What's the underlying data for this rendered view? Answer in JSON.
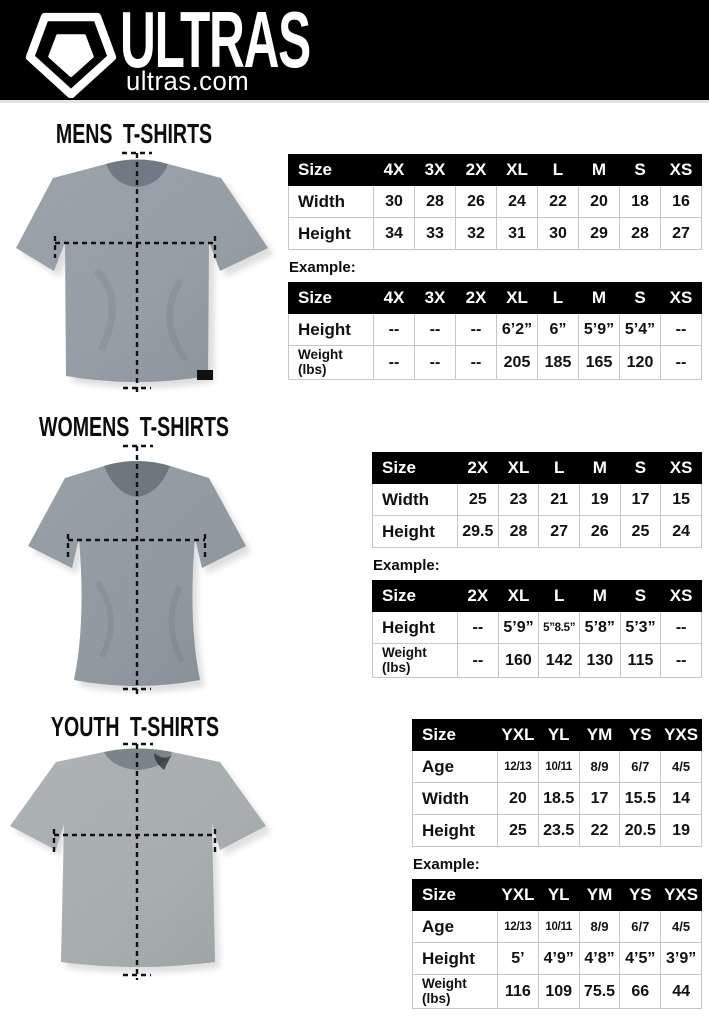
{
  "header": {
    "brand": "ULTRAS",
    "website": "ultras.com",
    "bg_color": "#000000",
    "logo_icon": "pentagon-crest-icon"
  },
  "example_label": "Example:",
  "colors": {
    "table_header_bg": "#000000",
    "table_header_text": "#ffffff",
    "table_border": "#c6c6c6",
    "shirt_gray_mens": "#87919a",
    "shirt_gray_womens": "#828c95",
    "shirt_gray_youth": "#99a0a2",
    "measure_line": "#111111"
  },
  "sections": [
    {
      "title": "MENS T-SHIRTS",
      "tables": [
        {
          "columns": [
            "Size",
            "4X",
            "3X",
            "2X",
            "XL",
            "L",
            "M",
            "S",
            "XS"
          ],
          "rows": [
            {
              "label": "Width",
              "values": [
                "30",
                "28",
                "26",
                "24",
                "22",
                "20",
                "18",
                "16"
              ]
            },
            {
              "label": "Height",
              "values": [
                "34",
                "33",
                "32",
                "31",
                "30",
                "29",
                "28",
                "27"
              ]
            }
          ]
        },
        {
          "columns": [
            "Size",
            "4X",
            "3X",
            "2X",
            "XL",
            "L",
            "M",
            "S",
            "XS"
          ],
          "rows": [
            {
              "label": "Height",
              "values": [
                "--",
                "--",
                "--",
                "6’2”",
                "6”",
                "5’9”",
                "5’4”",
                "--"
              ]
            },
            {
              "label": "Weight (lbs)",
              "values": [
                "--",
                "--",
                "--",
                "205",
                "185",
                "165",
                "120",
                "--"
              ]
            }
          ]
        }
      ]
    },
    {
      "title": "WOMENS T-SHIRTS",
      "tables": [
        {
          "columns": [
            "Size",
            "2X",
            "XL",
            "L",
            "M",
            "S",
            "XS"
          ],
          "rows": [
            {
              "label": "Width",
              "values": [
                "25",
                "23",
                "21",
                "19",
                "17",
                "15"
              ]
            },
            {
              "label": "Height",
              "values": [
                "29.5",
                "28",
                "27",
                "26",
                "25",
                "24"
              ]
            }
          ]
        },
        {
          "columns": [
            "Size",
            "2X",
            "XL",
            "L",
            "M",
            "S",
            "XS"
          ],
          "rows": [
            {
              "label": "Height",
              "values": [
                "--",
                "5’9”",
                "5”8.5”",
                "5’8”",
                "5’3”",
                "--"
              ]
            },
            {
              "label": "Weight (lbs)",
              "values": [
                "--",
                "160",
                "142",
                "130",
                "115",
                "--"
              ]
            }
          ]
        }
      ]
    },
    {
      "title": "YOUTH T-SHIRTS",
      "tables": [
        {
          "columns": [
            "Size",
            "YXL",
            "YL",
            "YM",
            "YS",
            "YXS"
          ],
          "rows": [
            {
              "label": "Age",
              "values": [
                "12/13",
                "10/11",
                "8/9",
                "6/7",
                "4/5"
              ]
            },
            {
              "label": "Width",
              "values": [
                "20",
                "18.5",
                "17",
                "15.5",
                "14"
              ]
            },
            {
              "label": "Height",
              "values": [
                "25",
                "23.5",
                "22",
                "20.5",
                "19"
              ]
            }
          ]
        },
        {
          "columns": [
            "Size",
            "YXL",
            "YL",
            "YM",
            "YS",
            "YXS"
          ],
          "rows": [
            {
              "label": "Age",
              "values": [
                "12/13",
                "10/11",
                "8/9",
                "6/7",
                "4/5"
              ]
            },
            {
              "label": "Height",
              "values": [
                "5’",
                "4’9”",
                "4’8”",
                "4’5”",
                "3’9”"
              ]
            },
            {
              "label": "Weight (lbs)",
              "values": [
                "116",
                "109",
                "75.5",
                "66",
                "44"
              ]
            }
          ]
        }
      ]
    }
  ]
}
